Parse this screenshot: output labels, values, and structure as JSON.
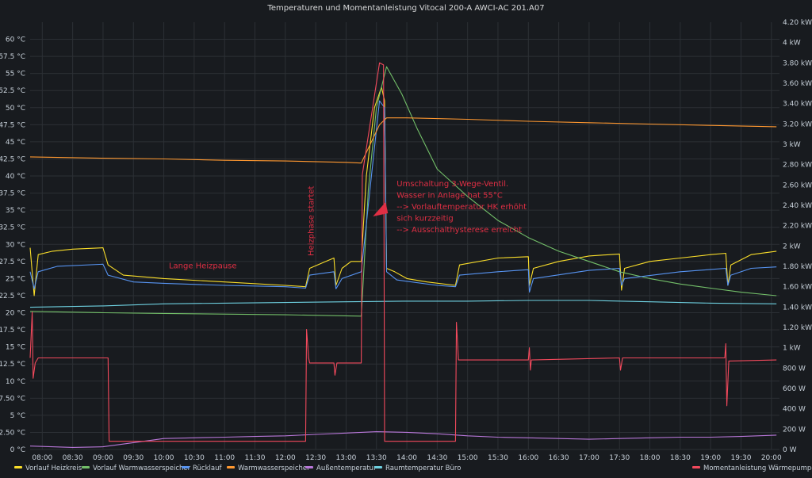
{
  "chart_data": {
    "type": "line",
    "title": "Temperaturen und Momentanleistung Vitocal 200-A AWCI-AC 201.A07",
    "x_range": [
      "07:48",
      "20:08"
    ],
    "x_ticks": [
      "08:00",
      "08:30",
      "09:00",
      "09:30",
      "10:00",
      "10:30",
      "11:00",
      "11:30",
      "12:00",
      "12:30",
      "13:00",
      "13:30",
      "14:00",
      "14:30",
      "15:00",
      "15:30",
      "16:00",
      "16:30",
      "17:00",
      "17:30",
      "18:00",
      "18:30",
      "19:00",
      "19:30",
      "20:00"
    ],
    "y_left": {
      "range": [
        0,
        62.5
      ],
      "ticks": [
        0,
        2.5,
        5,
        7.5,
        10,
        12.5,
        15,
        17.5,
        20,
        22.5,
        25,
        27.5,
        30,
        32.5,
        35,
        37.5,
        40,
        42.5,
        45,
        47.5,
        50,
        52.5,
        55,
        57.5,
        60
      ],
      "tick_labels": [
        "0 °C",
        "2.50 °C",
        "5 °C",
        "7.50 °C",
        "10 °C",
        "12.5 °C",
        "15 °C",
        "17.5 °C",
        "20 °C",
        "22.5 °C",
        "25 °C",
        "27.5 °C",
        "30 °C",
        "32.5 °C",
        "35 °C",
        "37.5 °C",
        "40 °C",
        "42.5 °C",
        "45 °C",
        "47.5 °C",
        "50 °C",
        "52.5 °C",
        "55 °C",
        "57.5 °C",
        "60 °C"
      ]
    },
    "y_right": {
      "range": [
        0,
        4200
      ],
      "ticks": [
        0,
        200,
        400,
        600,
        800,
        1000,
        1200,
        1400,
        1600,
        1800,
        2000,
        2200,
        2400,
        2600,
        2800,
        3000,
        3200,
        3400,
        3600,
        3800,
        4000,
        4200
      ],
      "tick_labels": [
        "0 W",
        "200 W",
        "400 W",
        "600 W",
        "800 W",
        "1 kW",
        "1.20 kW",
        "1.40 kW",
        "1.60 kW",
        "1.80 kW",
        "2 kW",
        "2.20 kW",
        "2.40 kW",
        "2.60 kW",
        "2.80 kW",
        "3 kW",
        "3.20 kW",
        "3.40 kW",
        "3.60 kW",
        "3.80 kW",
        "4 kW",
        "4.20 kW"
      ]
    },
    "grid": true,
    "legend_position": "bottom",
    "series": [
      {
        "name": "Vorlauf Heizkreis",
        "color": "#fade2a",
        "axis": "left",
        "points": [
          [
            "07:48",
            29.5
          ],
          [
            "07:52",
            22.5
          ],
          [
            "07:56",
            28.5
          ],
          [
            "08:10",
            29
          ],
          [
            "08:30",
            29.3
          ],
          [
            "09:00",
            29.5
          ],
          [
            "09:05",
            27
          ],
          [
            "09:20",
            25.5
          ],
          [
            "10:00",
            25
          ],
          [
            "11:00",
            24.5
          ],
          [
            "12:00",
            24
          ],
          [
            "12:20",
            23.8
          ],
          [
            "12:24",
            26.5
          ],
          [
            "12:40",
            27.5
          ],
          [
            "12:48",
            28
          ],
          [
            "12:50",
            24
          ],
          [
            "12:56",
            26.5
          ],
          [
            "13:05",
            27.5
          ],
          [
            "13:15",
            27.5
          ],
          [
            "13:20",
            40
          ],
          [
            "13:28",
            50
          ],
          [
            "13:35",
            53
          ],
          [
            "13:38",
            51
          ],
          [
            "13:40",
            26.5
          ],
          [
            "13:48",
            26
          ],
          [
            "14:00",
            25
          ],
          [
            "14:20",
            24.5
          ],
          [
            "14:48",
            24
          ],
          [
            "14:52",
            27
          ],
          [
            "15:30",
            28
          ],
          [
            "16:00",
            28.2
          ],
          [
            "16:01",
            24
          ],
          [
            "16:05",
            26.5
          ],
          [
            "16:30",
            27.5
          ],
          [
            "17:00",
            28.3
          ],
          [
            "17:30",
            28.6
          ],
          [
            "17:32",
            23.3
          ],
          [
            "17:35",
            26.5
          ],
          [
            "18:00",
            27.5
          ],
          [
            "18:30",
            28
          ],
          [
            "19:00",
            28.5
          ],
          [
            "19:15",
            28.7
          ],
          [
            "19:17",
            24
          ],
          [
            "19:20",
            27
          ],
          [
            "19:40",
            28.5
          ],
          [
            "20:05",
            29
          ]
        ]
      },
      {
        "name": "Vorlauf Warmwasserspeicher",
        "color": "#73bf69",
        "axis": "left",
        "points": [
          [
            "07:48",
            20.2
          ],
          [
            "09:00",
            20
          ],
          [
            "10:00",
            19.9
          ],
          [
            "12:00",
            19.7
          ],
          [
            "13:15",
            19.5
          ],
          [
            "13:22",
            38
          ],
          [
            "13:30",
            50
          ],
          [
            "13:40",
            56
          ],
          [
            "13:55",
            52
          ],
          [
            "14:10",
            47
          ],
          [
            "14:30",
            41
          ],
          [
            "15:00",
            37
          ],
          [
            "15:30",
            33.5
          ],
          [
            "16:00",
            31
          ],
          [
            "16:30",
            29
          ],
          [
            "17:00",
            27.5
          ],
          [
            "17:30",
            26
          ],
          [
            "18:00",
            25
          ],
          [
            "18:30",
            24.2
          ],
          [
            "19:00",
            23.6
          ],
          [
            "19:30",
            23
          ],
          [
            "20:05",
            22.5
          ]
        ]
      },
      {
        "name": "Rücklauf",
        "color": "#5794f2",
        "axis": "left",
        "points": [
          [
            "07:48",
            26
          ],
          [
            "07:52",
            23.5
          ],
          [
            "07:56",
            26
          ],
          [
            "08:15",
            26.8
          ],
          [
            "09:00",
            27.1
          ],
          [
            "09:05",
            25.5
          ],
          [
            "09:30",
            24.5
          ],
          [
            "10:00",
            24.3
          ],
          [
            "11:00",
            24
          ],
          [
            "12:00",
            23.8
          ],
          [
            "12:20",
            23.6
          ],
          [
            "12:24",
            25.5
          ],
          [
            "12:48",
            26
          ],
          [
            "12:50",
            23.5
          ],
          [
            "12:56",
            25
          ],
          [
            "13:15",
            26
          ],
          [
            "13:25",
            40
          ],
          [
            "13:33",
            51
          ],
          [
            "13:38",
            50
          ],
          [
            "13:40",
            26
          ],
          [
            "13:50",
            24.8
          ],
          [
            "14:30",
            24
          ],
          [
            "14:48",
            23.8
          ],
          [
            "14:52",
            25.5
          ],
          [
            "15:30",
            26
          ],
          [
            "16:00",
            26.3
          ],
          [
            "16:01",
            23
          ],
          [
            "16:05",
            25
          ],
          [
            "17:00",
            26.2
          ],
          [
            "17:30",
            26.5
          ],
          [
            "17:32",
            24
          ],
          [
            "17:35",
            25
          ],
          [
            "18:30",
            26
          ],
          [
            "19:15",
            26.5
          ],
          [
            "19:17",
            24
          ],
          [
            "19:20",
            25.5
          ],
          [
            "19:40",
            26.5
          ],
          [
            "20:05",
            26.7
          ]
        ]
      },
      {
        "name": "Warmwasserspeicher",
        "color": "#ff9830",
        "axis": "left",
        "points": [
          [
            "07:48",
            42.8
          ],
          [
            "09:00",
            42.6
          ],
          [
            "10:00",
            42.5
          ],
          [
            "11:00",
            42.3
          ],
          [
            "12:00",
            42.2
          ],
          [
            "13:00",
            42
          ],
          [
            "13:15",
            41.9
          ],
          [
            "13:25",
            45
          ],
          [
            "13:33",
            47.5
          ],
          [
            "13:40",
            48.5
          ],
          [
            "14:00",
            48.5
          ],
          [
            "15:00",
            48.3
          ],
          [
            "16:00",
            48
          ],
          [
            "17:00",
            47.8
          ],
          [
            "18:00",
            47.6
          ],
          [
            "19:00",
            47.4
          ],
          [
            "20:05",
            47.2
          ]
        ]
      },
      {
        "name": "Außentemperatur",
        "color": "#b877d9",
        "axis": "left",
        "points": [
          [
            "07:48",
            0.5
          ],
          [
            "08:30",
            0.3
          ],
          [
            "09:00",
            0.4
          ],
          [
            "09:30",
            1
          ],
          [
            "10:00",
            1.6
          ],
          [
            "10:30",
            1.7
          ],
          [
            "11:00",
            1.8
          ],
          [
            "11:30",
            1.9
          ],
          [
            "12:00",
            2
          ],
          [
            "12:30",
            2.2
          ],
          [
            "13:00",
            2.4
          ],
          [
            "13:30",
            2.6
          ],
          [
            "14:00",
            2.5
          ],
          [
            "14:30",
            2.3
          ],
          [
            "15:00",
            2
          ],
          [
            "15:30",
            1.8
          ],
          [
            "16:00",
            1.7
          ],
          [
            "16:30",
            1.6
          ],
          [
            "17:00",
            1.5
          ],
          [
            "17:30",
            1.6
          ],
          [
            "18:00",
            1.7
          ],
          [
            "18:30",
            1.8
          ],
          [
            "19:00",
            1.8
          ],
          [
            "19:30",
            1.9
          ],
          [
            "20:05",
            2.1
          ]
        ]
      },
      {
        "name": "Raumtemperatur Büro",
        "color": "#6ed0e0",
        "axis": "left",
        "points": [
          [
            "07:48",
            20.8
          ],
          [
            "09:00",
            21
          ],
          [
            "10:00",
            21.3
          ],
          [
            "11:00",
            21.4
          ],
          [
            "12:00",
            21.5
          ],
          [
            "13:00",
            21.6
          ],
          [
            "14:00",
            21.7
          ],
          [
            "15:00",
            21.7
          ],
          [
            "16:00",
            21.8
          ],
          [
            "17:00",
            21.8
          ],
          [
            "18:00",
            21.6
          ],
          [
            "19:00",
            21.4
          ],
          [
            "20:05",
            21.3
          ]
        ]
      },
      {
        "name": "Momentanleistung Wärmepumpe",
        "color": "#f2495c",
        "axis": "right",
        "points": [
          [
            "07:48",
            900
          ],
          [
            "07:50",
            1350
          ],
          [
            "07:51",
            700
          ],
          [
            "07:53",
            850
          ],
          [
            "07:56",
            900
          ],
          [
            "09:05",
            900
          ],
          [
            "09:06",
            80
          ],
          [
            "12:20",
            80
          ],
          [
            "12:21",
            1180
          ],
          [
            "12:23",
            900
          ],
          [
            "12:24",
            850
          ],
          [
            "12:48",
            850
          ],
          [
            "12:49",
            730
          ],
          [
            "12:51",
            850
          ],
          [
            "13:15",
            850
          ],
          [
            "13:16",
            2700
          ],
          [
            "13:33",
            3800
          ],
          [
            "13:37",
            3780
          ],
          [
            "13:38",
            80
          ],
          [
            "14:48",
            80
          ],
          [
            "14:49",
            1250
          ],
          [
            "14:51",
            880
          ],
          [
            "16:00",
            880
          ],
          [
            "16:01",
            1000
          ],
          [
            "16:02",
            780
          ],
          [
            "16:03",
            880
          ],
          [
            "17:30",
            900
          ],
          [
            "17:31",
            780
          ],
          [
            "17:33",
            900
          ],
          [
            "19:14",
            900
          ],
          [
            "19:15",
            1040
          ],
          [
            "19:16",
            430
          ],
          [
            "19:18",
            870
          ],
          [
            "20:05",
            880
          ]
        ]
      }
    ],
    "annotations": [
      {
        "text": "Lange Heizpause",
        "time": "10:05",
        "value": 26.5
      },
      {
        "text": "Heizphase startet",
        "time": "12:28",
        "value": 28.3,
        "rotated": true
      },
      {
        "lines": [
          "Umschaltung 3-Wege-Ventil.",
          "Wasser in Anlage hat 55°C",
          "--> Vorlauftemperatur HK erhöht",
          "sich kurzzeitig",
          "--> Ausschalthysterese erreicht"
        ],
        "time": "13:50",
        "value": 38.5
      }
    ],
    "annotation_color": "#e02f44"
  }
}
